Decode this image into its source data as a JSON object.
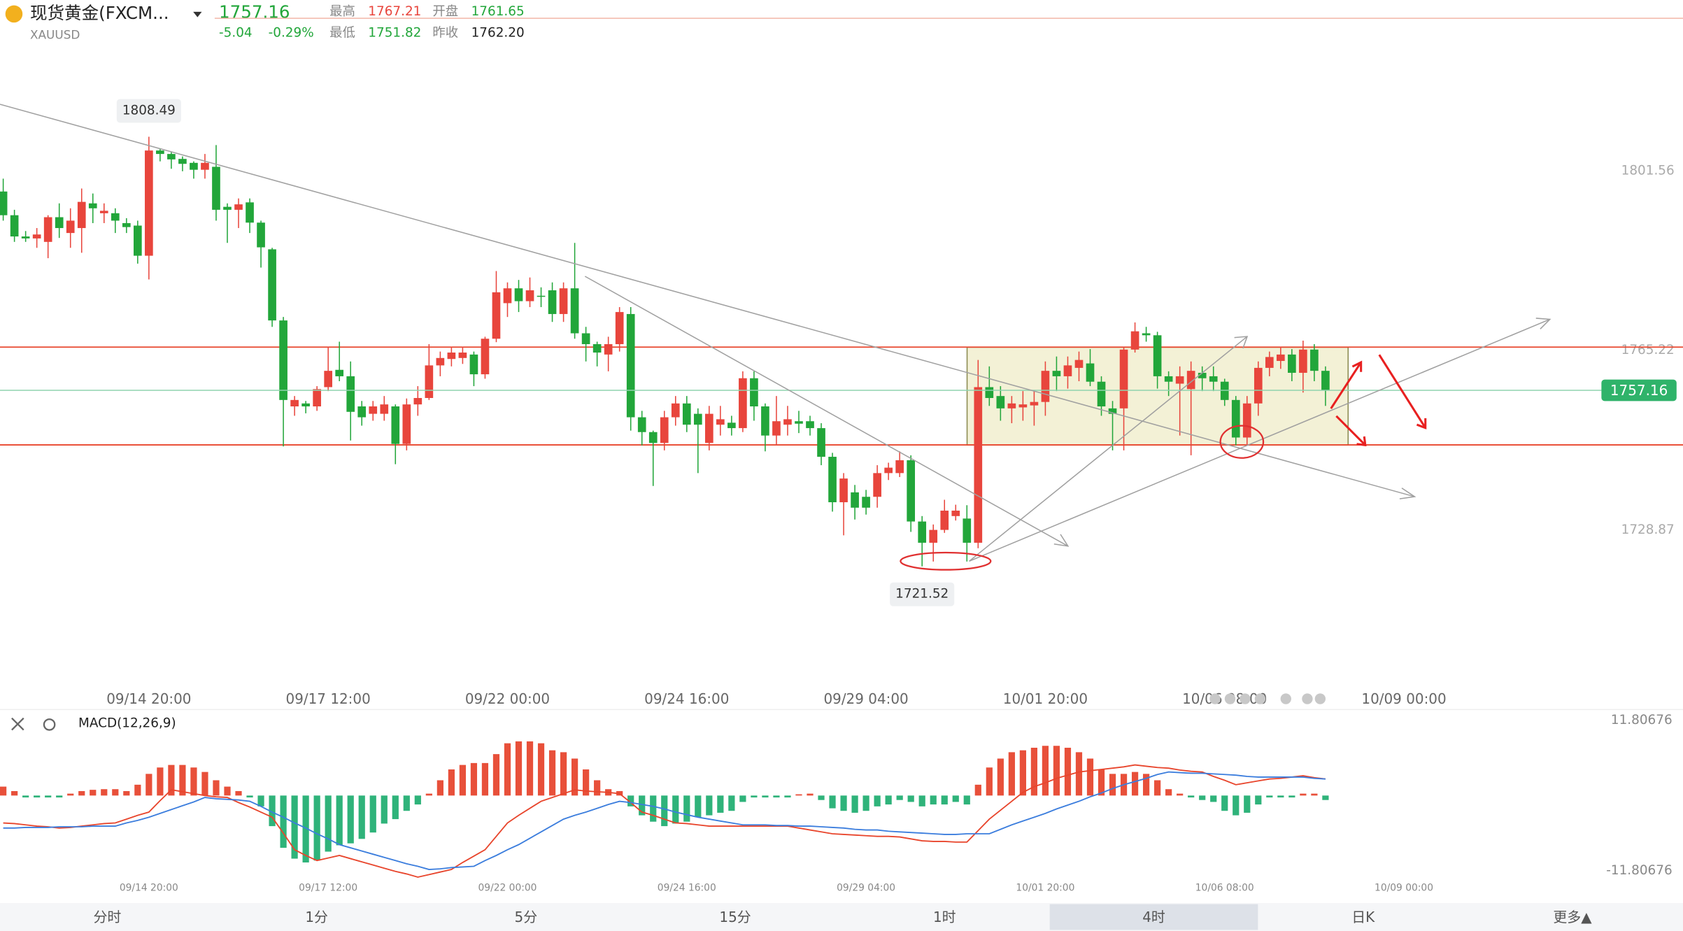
{
  "header": {
    "name": "现货黄金(FXCM...",
    "symbol": "XAUUSD",
    "price": "1757.16",
    "change": "-5.04",
    "change_pct": "-0.29%",
    "stats": [
      {
        "label": "最高",
        "value": "1767.21"
      },
      {
        "label": "开盘",
        "value": "1761.65"
      },
      {
        "label": "最低",
        "value": "1751.82"
      },
      {
        "label": "昨收",
        "value": "1762.20"
      }
    ]
  },
  "chart_data": {
    "type": "candlestick",
    "up_color": "#e8453c",
    "down_color": "#22a63a",
    "categories": [
      null,
      null,
      null,
      null,
      null,
      null,
      null,
      null,
      null,
      null,
      null,
      null,
      null,
      "09/14 20:00",
      null,
      null,
      null,
      null,
      null,
      null,
      null,
      null,
      null,
      null,
      null,
      null,
      null,
      null,
      null,
      "09/17 12:00",
      null,
      null,
      null,
      null,
      null,
      null,
      null,
      null,
      null,
      null,
      null,
      null,
      null,
      null,
      null,
      "09/22 00:00",
      null,
      null,
      null,
      null,
      null,
      null,
      null,
      null,
      null,
      null,
      null,
      null,
      null,
      null,
      null,
      "09/24 16:00",
      null,
      null,
      null,
      null,
      null,
      null,
      null,
      null,
      null,
      null,
      null,
      null,
      null,
      null,
      null,
      "09/29 04:00",
      null,
      null,
      null,
      null,
      null,
      null,
      null,
      null,
      null,
      null,
      null,
      null,
      null,
      null,
      null,
      "10/01 20:00",
      null,
      null,
      null,
      null,
      null,
      null,
      null,
      null,
      null,
      null,
      null,
      null,
      null,
      null,
      null,
      "10/06 08:00",
      null,
      null,
      null,
      null,
      null,
      null,
      null,
      null,
      null,
      null,
      null,
      null,
      null,
      null,
      null,
      "10/09 00:00"
    ],
    "open": [
      1797.4,
      1792.6,
      1788.3,
      1787.9,
      1787.2,
      1792.2,
      1789,
      1790,
      1795,
      1793,
      1793,
      1791,
      1790.5,
      1784.4,
      1805.7,
      1805,
      1804,
      1803.2,
      1801.8,
      1802.4,
      1794.3,
      1793.7,
      1795.2,
      1791.1,
      1785.7,
      1771.3,
      1753.9,
      1754.5,
      1753.9,
      1757.8,
      1761.3,
      1760,
      1753.9,
      1752.4,
      1752.4,
      1753.9,
      1746.3,
      1754.3,
      1755.6,
      1762.2,
      1763.5,
      1763.7,
      1764.4,
      1760.4,
      1767.6,
      1774.8,
      1777.8,
      1775.2,
      1776.3,
      1777.4,
      1772.6,
      1777.8,
      1768.7,
      1766.5,
      1764.4,
      1766.5,
      1772.6,
      1751.7,
      1748.7,
      1746.5,
      1751.7,
      1754.5,
      1752.4,
      1746.5,
      1750.2,
      1750.6,
      1749.5,
      1759.6,
      1753.9,
      1748,
      1750.2,
      1750.9,
      1750.9,
      1749.5,
      1743.7,
      1734.5,
      1736.5,
      1735.6,
      1735.6,
      1740.4,
      1740.4,
      1743,
      1730.6,
      1726.3,
      1728.9,
      1731.7,
      1731.2,
      1726.3,
      1757.8,
      1756,
      1753.5,
      1753.7,
      1754.1,
      1754.8,
      1761.1,
      1760,
      1761.7,
      1762.6,
      1758.9,
      1753.5,
      1753.5,
      1765.4,
      1768.7,
      1768.3,
      1760,
      1758.5,
      1757.4,
      1760.7,
      1760,
      1758.9,
      1755.2,
      1747.6,
      1754.5,
      1761.7,
      1763.1,
      1764.4,
      1760.7,
      1765.4,
      1761.1,
      null,
      null,
      null,
      null,
      null,
      null,
      null
    ],
    "high": [
      1800,
      1793.7,
      1789.4,
      1790,
      1792.6,
      1795,
      1794,
      1798,
      1797,
      1795,
      1794,
      1792,
      1791.5,
      1808.49,
      1806,
      1805.5,
      1804.5,
      1803.5,
      1805,
      1806.8,
      1795,
      1796,
      1796,
      1791.5,
      1786,
      1772,
      1756,
      1755,
      1758,
      1766,
      1767,
      1763,
      1755,
      1755,
      1756,
      1754.3,
      1755.5,
      1758,
      1766.5,
      1765,
      1766,
      1766,
      1765,
      1768,
      1781.3,
      1779,
      1779.5,
      1780,
      1778,
      1779,
      1779,
      1787,
      1770,
      1767,
      1768,
      1774,
      1774,
      1753,
      1749,
      1753,
      1756,
      1756,
      1753.5,
      1754,
      1754,
      1752,
      1761,
      1761,
      1754.5,
      1756,
      1754,
      1753,
      1752,
      1750.5,
      1744.5,
      1740.4,
      1738,
      1737,
      1742,
      1742.5,
      1744.8,
      1744,
      1731.7,
      1730,
      1735,
      1734,
      1733.9,
      1763.3,
      1762,
      1758,
      1756,
      1757,
      1757,
      1763,
      1764,
      1764,
      1765,
      1765.5,
      1760,
      1755,
      1766,
      1770.9,
      1770,
      1769,
      1761,
      1762,
      1763,
      1762,
      1762,
      1759.5,
      1756,
      1756,
      1763,
      1765,
      1766,
      1765.5,
      1767.21,
      1766.5,
      1762,
      null,
      null,
      null,
      null,
      null,
      null,
      null
    ],
    "low": [
      1791.5,
      1787.2,
      1787.2,
      1786,
      1783.9,
      1788,
      1786,
      1785,
      1791,
      1791,
      1789,
      1789,
      1782.8,
      1779.6,
      1803.5,
      1802,
      1801.5,
      1800,
      1800,
      1791.5,
      1787,
      1790,
      1789,
      1782,
      1770,
      1745.8,
      1752,
      1752.5,
      1753,
      1757,
      1759,
      1747,
      1750,
      1751,
      1751,
      1742.2,
      1745,
      1752,
      1755.2,
      1760,
      1762,
      1762.5,
      1758,
      1759.5,
      1766.9,
      1772,
      1773,
      1774,
      1774,
      1771,
      1771,
      1767.6,
      1763,
      1762,
      1761,
      1765,
      1749,
      1746,
      1737.8,
      1745,
      1750,
      1748.7,
      1740.4,
      1745,
      1748,
      1748,
      1748.7,
      1751,
      1744.8,
      1746,
      1748,
      1748.5,
      1748,
      1742,
      1732.6,
      1727.8,
      1731,
      1732,
      1733.4,
      1739,
      1739.6,
      1728.5,
      1721.52,
      1722.5,
      1728.3,
      1730.8,
      1722.5,
      1725.2,
      1754,
      1751,
      1750.5,
      1751,
      1750,
      1752,
      1757,
      1757.5,
      1759,
      1758,
      1752,
      1745,
      1745,
      1764.8,
      1767,
      1757.5,
      1756,
      1748,
      1744,
      1757,
      1757,
      1754,
      1746,
      1746,
      1752,
      1760,
      1761.5,
      1759,
      1756.7,
      1759,
      1754,
      null,
      null,
      null,
      null,
      null,
      null,
      null
    ],
    "close": [
      1792.6,
      1788.3,
      1787.9,
      1788.7,
      1792.2,
      1790,
      1791.5,
      1795.3,
      1794,
      1793.5,
      1791.5,
      1790.2,
      1784.4,
      1805.7,
      1805,
      1803.9,
      1803,
      1801.8,
      1803.2,
      1793.7,
      1793.7,
      1794.8,
      1791.1,
      1786.1,
      1771.3,
      1755.2,
      1755.2,
      1753.9,
      1757.4,
      1761.1,
      1760,
      1752.8,
      1751.7,
      1753.9,
      1754.3,
      1746.3,
      1754.3,
      1755.6,
      1762.2,
      1763.7,
      1764.8,
      1764.8,
      1760.4,
      1767.6,
      1777,
      1777.8,
      1775.2,
      1777.4,
      1776.1,
      1772.6,
      1777.8,
      1768.7,
      1766.5,
      1764.8,
      1766.5,
      1773,
      1751.7,
      1748.7,
      1746.5,
      1751.7,
      1754.5,
      1750.2,
      1750.2,
      1752.4,
      1751.3,
      1749.5,
      1759.6,
      1753.9,
      1748,
      1750.9,
      1751.3,
      1750.4,
      1749.5,
      1743.7,
      1734.5,
      1739.3,
      1733.4,
      1733.4,
      1740.4,
      1741.5,
      1743,
      1730.6,
      1726.3,
      1728.9,
      1732.8,
      1732.8,
      1726.3,
      1757.8,
      1755.6,
      1753.5,
      1754.5,
      1754.3,
      1754.8,
      1761.1,
      1760,
      1762.2,
      1763.3,
      1758.9,
      1753.9,
      1752.4,
      1765.4,
      1769.1,
      1768.3,
      1760,
      1758.9,
      1760,
      1761.1,
      1759.6,
      1758.9,
      1755.2,
      1747.6,
      1754.5,
      1761.7,
      1763.9,
      1764.4,
      1760.7,
      1765.4,
      1761.1,
      1757.16,
      null,
      null,
      null,
      null,
      null,
      null,
      null
    ],
    "ylim": [
      1696.89,
      1827.46
    ],
    "yticks": [
      1801.56,
      1765.22,
      1728.87
    ],
    "hlines": {
      "color": "#e8452c",
      "values": [
        1765.9,
        1746.1
      ]
    },
    "macd": {
      "name": "MACD(12,26,9)",
      "ylim": [
        -11.80676,
        11.80676
      ],
      "yticks": [
        11.80676,
        -11.80676
      ],
      "up_color": "#e8503a",
      "down_color": "#2fb37a",
      "hist": [
        1.4,
        0.7,
        -0.3,
        -0.3,
        -0.3,
        -0.3,
        0.3,
        0.7,
        0.9,
        1.0,
        1.0,
        0.7,
        1.7,
        3.4,
        4.4,
        4.8,
        4.8,
        4.4,
        3.7,
        2.4,
        1.4,
        0.7,
        -0.3,
        -1.7,
        -4.8,
        -8.2,
        -9.9,
        -10.5,
        -10.2,
        -8.8,
        -7.8,
        -7.5,
        -6.8,
        -5.8,
        -4.4,
        -3.7,
        -2.4,
        -1.4,
        0.3,
        2.4,
        4.1,
        4.8,
        5.1,
        5.1,
        6.5,
        8.2,
        8.5,
        8.5,
        8.2,
        7.1,
        6.8,
        5.8,
        4.1,
        2.4,
        1.0,
        0.7,
        -1.7,
        -3.1,
        -4.1,
        -4.8,
        -4.4,
        -4.1,
        -3.4,
        -3.1,
        -2.7,
        -2.4,
        -1.0,
        -0.3,
        -0.3,
        -0.3,
        -0.3,
        0.2,
        0.3,
        -0.7,
        -2.0,
        -2.4,
        -2.7,
        -2.4,
        -1.7,
        -1.4,
        -0.7,
        -1.0,
        -1.7,
        -1.4,
        -1.4,
        -1.0,
        -1.4,
        1.7,
        4.4,
        5.8,
        6.8,
        7.1,
        7.5,
        7.8,
        7.8,
        7.5,
        6.8,
        5.8,
        4.1,
        3.4,
        3.4,
        3.7,
        3.4,
        2.4,
        1.0,
        0.3,
        -0.3,
        -0.7,
        -1.0,
        -2.4,
        -3.1,
        -2.7,
        -1.4,
        -0.3,
        -0.3,
        -0.3,
        0.3,
        0.3,
        -0.7,
        null,
        null,
        null,
        null,
        null,
        null,
        null
      ],
      "series": [
        {
          "color": "#e8452c",
          "values": [
            -4.3,
            -4.4,
            -4.6,
            -4.8,
            -4.9,
            -5.1,
            -5.0,
            -4.8,
            -4.6,
            -4.4,
            -4.3,
            -3.7,
            -3.1,
            -2.6,
            -0.8,
            0.9,
            0.6,
            0.3,
            0.0,
            -0.2,
            -0.3,
            -1.1,
            -1.8,
            -2.6,
            -3.4,
            -5.9,
            -8.5,
            -9.4,
            -10.2,
            -9.8,
            -9.4,
            -9.9,
            -10.4,
            -10.9,
            -11.4,
            -11.9,
            -12.3,
            -12.8,
            -12.4,
            -12.0,
            -11.6,
            -10.5,
            -9.5,
            -8.5,
            -6.4,
            -4.3,
            -3.1,
            -2.0,
            -0.9,
            -0.3,
            0.3,
            0.9,
            0.7,
            0.6,
            0.5,
            0.3,
            -1.1,
            -2.6,
            -3.1,
            -3.7,
            -4.3,
            -4.4,
            -4.6,
            -4.8,
            -4.8,
            -4.8,
            -4.8,
            -4.8,
            -4.8,
            -4.8,
            -4.8,
            -5.1,
            -5.4,
            -5.7,
            -6.0,
            -6.1,
            -6.2,
            -6.3,
            -6.4,
            -6.4,
            -6.5,
            -6.8,
            -7.1,
            -7.2,
            -7.2,
            -7.3,
            -7.3,
            -5.5,
            -3.7,
            -2.3,
            -0.9,
            0.5,
            1.4,
            2.0,
            2.7,
            3.2,
            3.7,
            3.9,
            4.1,
            4.3,
            4.5,
            4.8,
            4.6,
            4.4,
            4.3,
            4.0,
            3.8,
            3.7,
            3.0,
            2.4,
            1.7,
            2.0,
            2.3,
            2.6,
            2.7,
            2.9,
            3.1,
            2.8,
            2.6,
            null,
            null,
            null,
            null,
            null,
            null,
            null
          ]
        },
        {
          "color": "#3b7ddd",
          "values": [
            -5.1,
            -5.1,
            -5.0,
            -5.0,
            -5.0,
            -4.9,
            -4.9,
            -4.9,
            -4.8,
            -4.8,
            -4.8,
            -4.3,
            -3.9,
            -3.4,
            -2.8,
            -2.2,
            -1.6,
            -1.0,
            -0.3,
            -0.5,
            -0.6,
            -0.7,
            -0.9,
            -1.7,
            -2.6,
            -3.4,
            -4.3,
            -5.1,
            -6.0,
            -6.8,
            -7.7,
            -8.2,
            -8.7,
            -9.2,
            -9.7,
            -10.2,
            -10.7,
            -11.1,
            -11.6,
            -11.5,
            -11.3,
            -11.2,
            -11.1,
            -10.2,
            -9.4,
            -8.5,
            -7.7,
            -6.7,
            -5.7,
            -4.7,
            -3.7,
            -3.1,
            -2.6,
            -2.0,
            -1.4,
            -0.9,
            -1.1,
            -1.4,
            -1.7,
            -2.1,
            -2.6,
            -3.0,
            -3.4,
            -3.7,
            -4.0,
            -4.3,
            -4.6,
            -4.6,
            -4.6,
            -4.7,
            -4.7,
            -4.8,
            -4.8,
            -4.9,
            -5.0,
            -5.1,
            -5.3,
            -5.4,
            -5.4,
            -5.6,
            -5.7,
            -5.8,
            -5.9,
            -6.0,
            -6.1,
            -6.1,
            -6.0,
            -6.0,
            -6.0,
            -5.3,
            -4.6,
            -4.0,
            -3.4,
            -2.8,
            -2.1,
            -1.5,
            -0.9,
            -0.2,
            0.4,
            1.1,
            1.7,
            2.2,
            2.7,
            3.3,
            3.7,
            3.6,
            3.5,
            3.5,
            3.4,
            3.3,
            3.2,
            3.0,
            2.9,
            2.9,
            2.9,
            2.9,
            2.9,
            2.7,
            2.6,
            null,
            null,
            null,
            null,
            null,
            null,
            null
          ]
        }
      ]
    }
  },
  "tabs": {
    "items": [
      "分时",
      "1分",
      "5分",
      "15分",
      "1时",
      "4时",
      "日K",
      "更多▲"
    ],
    "selected": 5
  }
}
